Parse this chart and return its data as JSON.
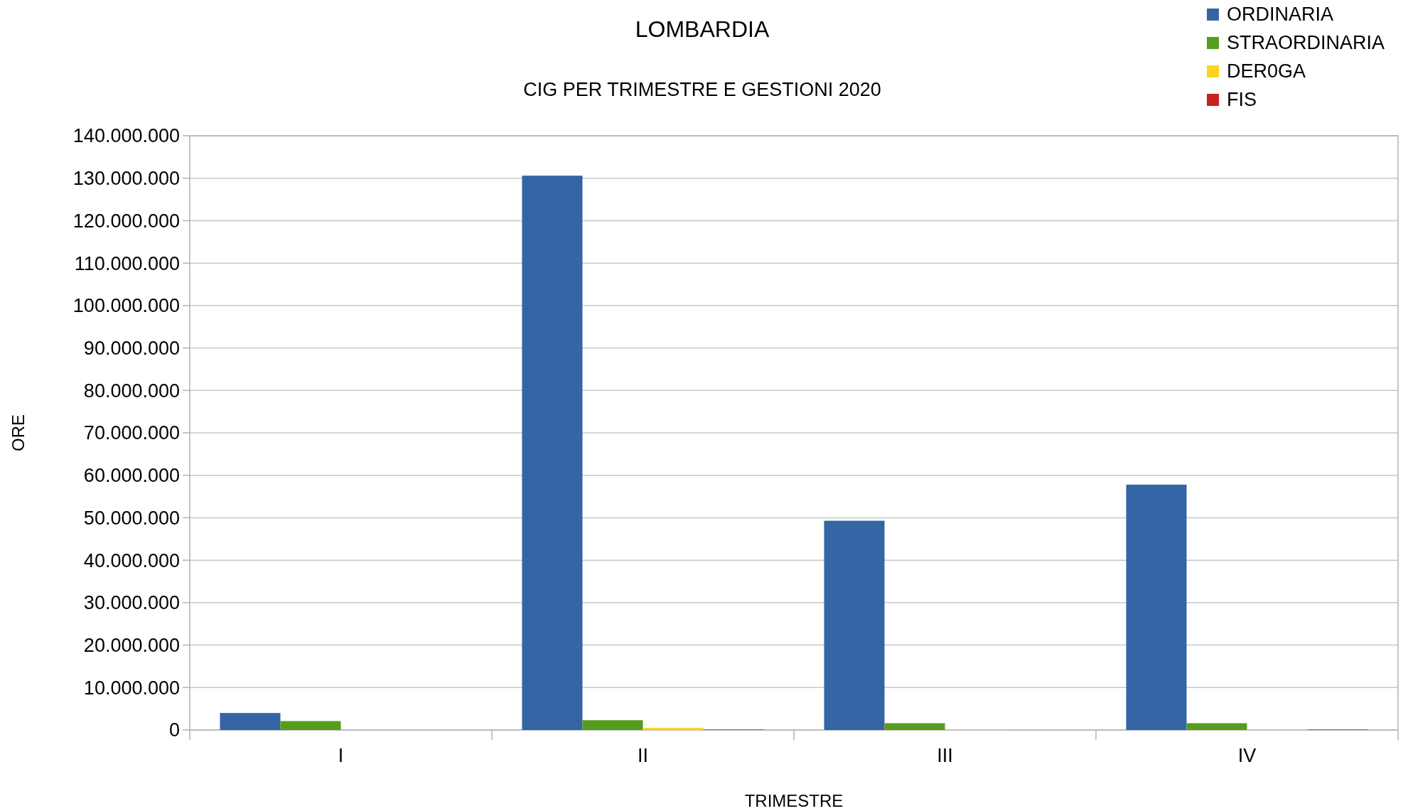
{
  "chart_data": {
    "type": "bar",
    "title": "LOMBARDIA",
    "subtitle": "CIG PER TRIMESTRE E GESTIONI 2020",
    "xlabel": "TRIMESTRE",
    "ylabel": "ORE",
    "categories": [
      "I",
      "II",
      "III",
      "IV"
    ],
    "series": [
      {
        "name": "ORDINARIA",
        "color": "#3465a4",
        "values": [
          4000000,
          130600000,
          49300000,
          57800000
        ]
      },
      {
        "name": "STRAORDINARIA",
        "color": "#579d1c",
        "values": [
          2100000,
          2300000,
          1600000,
          1600000
        ]
      },
      {
        "name": "DER0GA",
        "color": "#ffd320",
        "values": [
          0,
          500000,
          100000,
          100000
        ]
      },
      {
        "name": "FIS",
        "color": "#c9211e",
        "values": [
          0,
          100000,
          0,
          100000
        ]
      }
    ],
    "ylim": [
      0,
      140000000
    ],
    "yticks": [
      {
        "value": 0,
        "label": "0"
      },
      {
        "value": 10000000,
        "label": "10.000.000"
      },
      {
        "value": 20000000,
        "label": "20.000.000"
      },
      {
        "value": 30000000,
        "label": "30.000.000"
      },
      {
        "value": 40000000,
        "label": "40.000.000"
      },
      {
        "value": 50000000,
        "label": "50.000.000"
      },
      {
        "value": 60000000,
        "label": "60.000.000"
      },
      {
        "value": 70000000,
        "label": "70.000.000"
      },
      {
        "value": 80000000,
        "label": "80.000.000"
      },
      {
        "value": 90000000,
        "label": "90.000.000"
      },
      {
        "value": 100000000,
        "label": "100.000.000"
      },
      {
        "value": 110000000,
        "label": "110.000.000"
      },
      {
        "value": 120000000,
        "label": "120.000.000"
      },
      {
        "value": 130000000,
        "label": "130.000.000"
      },
      {
        "value": 140000000,
        "label": "140.000.000"
      }
    ],
    "grid": "y",
    "legend": "top right"
  }
}
